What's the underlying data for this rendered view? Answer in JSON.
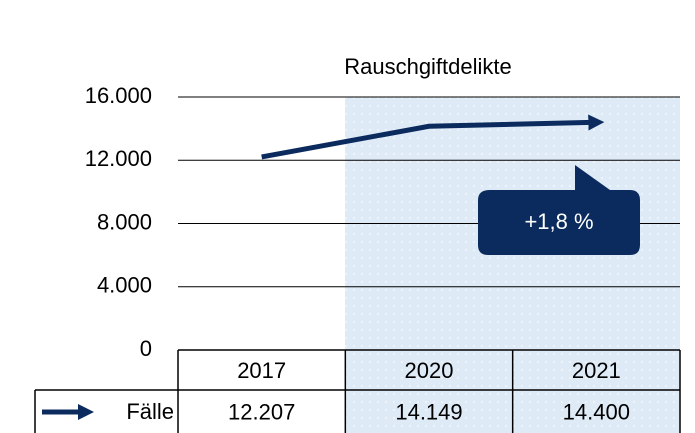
{
  "chart_data": {
    "type": "line",
    "title": "Rauschgiftdelikte",
    "categories": [
      "2017",
      "2020",
      "2021"
    ],
    "series": [
      {
        "name": "Fälle",
        "color": "#0b2b5e",
        "values": [
          12207,
          14149,
          14400
        ],
        "value_labels": [
          "12.207",
          "14.149",
          "14.400"
        ]
      }
    ],
    "ylim": [
      0,
      16000
    ],
    "yticks": [
      0,
      {
        "value": 4000,
        "label": "4.000"
      },
      {
        "value": 8000,
        "label": "8.000"
      },
      {
        "value": 12000,
        "label": "12.000"
      },
      {
        "value": 16000,
        "label": "16.000"
      }
    ],
    "grid": true,
    "annotation": "+1,8 %"
  }
}
